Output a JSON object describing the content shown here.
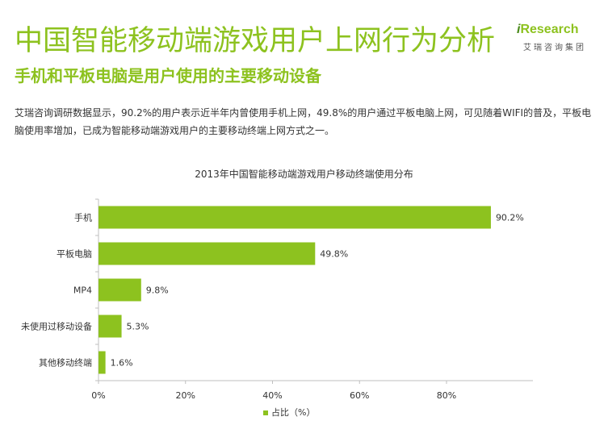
{
  "header": {
    "title": "中国智能移动端游戏用户上网行为分析",
    "subtitle": "手机和平板电脑是用户使用的主要移动设备",
    "logo_main": "Research",
    "logo_prefix": "i",
    "logo_sub": "艾瑞咨询集团"
  },
  "description": "艾瑞咨询调研数据显示，90.2%的用户表示近半年内曾使用手机上网，49.8%的用户通过平板电脑上网，可见随着WIFI的普及，平板电脑使用率增加，已成为智能移动端游戏用户的主要移动终端上网方式之一。",
  "colors": {
    "accent": "#8dc21f",
    "bar": "#8dc21f",
    "axis": "#bfbfbf"
  },
  "chart_data": {
    "type": "bar",
    "orientation": "horizontal",
    "title": "2013年中国智能移动端游戏用户移动终端使用分布",
    "categories": [
      "手机",
      "平板电脑",
      "MP4",
      "未使用过移动设备",
      "其他移动终端"
    ],
    "series": [
      {
        "name": "占比（%）",
        "values": [
          90.2,
          49.8,
          9.8,
          5.3,
          1.6
        ]
      }
    ],
    "value_labels": [
      "90.2%",
      "49.8%",
      "9.8%",
      "5.3%",
      "1.6%"
    ],
    "xlim": [
      0,
      100
    ],
    "xticks": [
      0,
      20,
      40,
      60,
      80
    ],
    "xtick_labels": [
      "0%",
      "20%",
      "40%",
      "60%",
      "80%"
    ],
    "grid": false,
    "legend": "bottom-center"
  }
}
